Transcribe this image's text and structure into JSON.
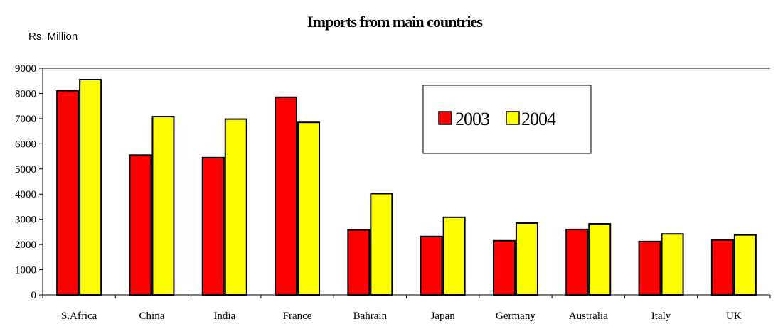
{
  "chart_data": {
    "type": "bar",
    "title": "Imports from main countries",
    "ylabel": "Rs. Million",
    "xlabel": "",
    "ylim": [
      0,
      9000
    ],
    "yticks": [
      0,
      1000,
      2000,
      3000,
      4000,
      5000,
      6000,
      7000,
      8000,
      9000
    ],
    "categories": [
      "S.Africa",
      "China",
      "India",
      "France",
      "Bahrain",
      "Japan",
      "Germany",
      "Australia",
      "Italy",
      "UK"
    ],
    "series": [
      {
        "name": "2003",
        "color": "#ff0000",
        "values": [
          8100,
          5550,
          5450,
          7850,
          2580,
          2320,
          2150,
          2600,
          2120,
          2180
        ]
      },
      {
        "name": "2004",
        "color": "#ffff00",
        "values": [
          8550,
          7080,
          6980,
          6850,
          4020,
          3080,
          2850,
          2820,
          2420,
          2380
        ]
      }
    ],
    "legend": {
      "position": "top-right"
    },
    "grid": false
  }
}
